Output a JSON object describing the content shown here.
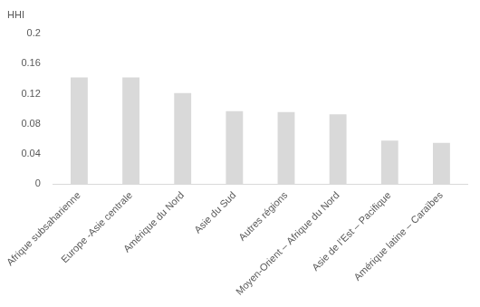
{
  "chart_data": {
    "type": "bar",
    "y_label": "HHI",
    "categories": [
      "Afrique subsaharienne",
      "Europe -Asie centrale",
      "Amérique du Nord",
      "Asie du Sud",
      "Autres régions",
      "Moyen-Orient – Afrique du Nord",
      "Asie de l’Est – Pacifique",
      "Amérique latine – Caraïbes"
    ],
    "values": [
      0.142,
      0.142,
      0.121,
      0.097,
      0.096,
      0.093,
      0.058,
      0.055
    ],
    "color": "#d9d9d9",
    "ylim": [
      0,
      0.2
    ],
    "yticks": [
      0,
      0.04,
      0.08,
      0.12,
      0.16,
      0.2
    ],
    "grid": false
  }
}
